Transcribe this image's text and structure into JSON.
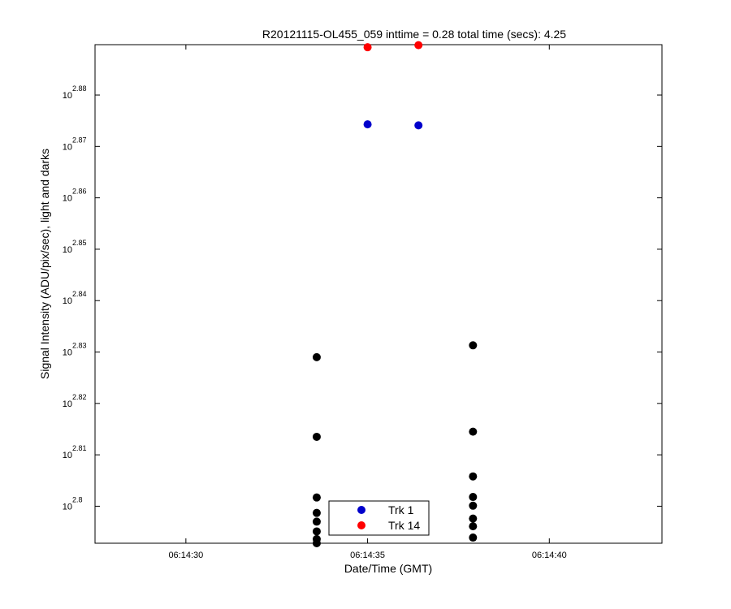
{
  "chart_data": {
    "type": "scatter",
    "title": "R20121115-OL455_059 inttime = 0.28 total time (secs): 4.25",
    "xlabel": "Date/Time (GMT)",
    "ylabel": "Signal Intensity (ADU/pix/sec), light and darks",
    "x_tick_labels": [
      "06:14:30",
      "06:14:35",
      "06:14:40"
    ],
    "x_tick_values": [
      30,
      35,
      40
    ],
    "xlim": [
      27.5,
      43.1
    ],
    "y_tick_base": "10",
    "y_tick_exponents": [
      "2.8",
      "2.81",
      "2.82",
      "2.83",
      "2.84",
      "2.85",
      "2.86",
      "2.87",
      "2.88"
    ],
    "y_tick_values": [
      2.8,
      2.81,
      2.82,
      2.83,
      2.84,
      2.85,
      2.86,
      2.87,
      2.88
    ],
    "ylim_log10": [
      2.7928,
      2.8898
    ],
    "y_scale": "log",
    "grid": false,
    "legend_position": "bottom-center",
    "series": [
      {
        "name": "Trk 1",
        "color": "#0000cc",
        "points": [
          {
            "x": 35.0,
            "y": 2.8743
          },
          {
            "x": 36.4,
            "y": 2.8741
          }
        ]
      },
      {
        "name": "Trk 14",
        "color": "#ff0000",
        "points": [
          {
            "x": 35.0,
            "y": 2.8893
          },
          {
            "x": 36.4,
            "y": 2.8897
          }
        ]
      },
      {
        "color": "#000000",
        "points": [
          {
            "x": 33.6,
            "y": 2.829
          },
          {
            "x": 33.6,
            "y": 2.8135
          },
          {
            "x": 33.6,
            "y": 2.8017
          },
          {
            "x": 33.6,
            "y": 2.7987
          },
          {
            "x": 33.6,
            "y": 2.797
          },
          {
            "x": 33.6,
            "y": 2.7951
          },
          {
            "x": 33.6,
            "y": 2.7936
          },
          {
            "x": 33.6,
            "y": 2.7928
          },
          {
            "x": 37.9,
            "y": 2.8313
          },
          {
            "x": 37.9,
            "y": 2.8145
          },
          {
            "x": 37.9,
            "y": 2.8058
          },
          {
            "x": 37.9,
            "y": 2.8018
          },
          {
            "x": 37.9,
            "y": 2.8001
          },
          {
            "x": 37.9,
            "y": 2.7976
          },
          {
            "x": 37.9,
            "y": 2.7961
          },
          {
            "x": 37.9,
            "y": 2.7939
          }
        ]
      }
    ]
  }
}
